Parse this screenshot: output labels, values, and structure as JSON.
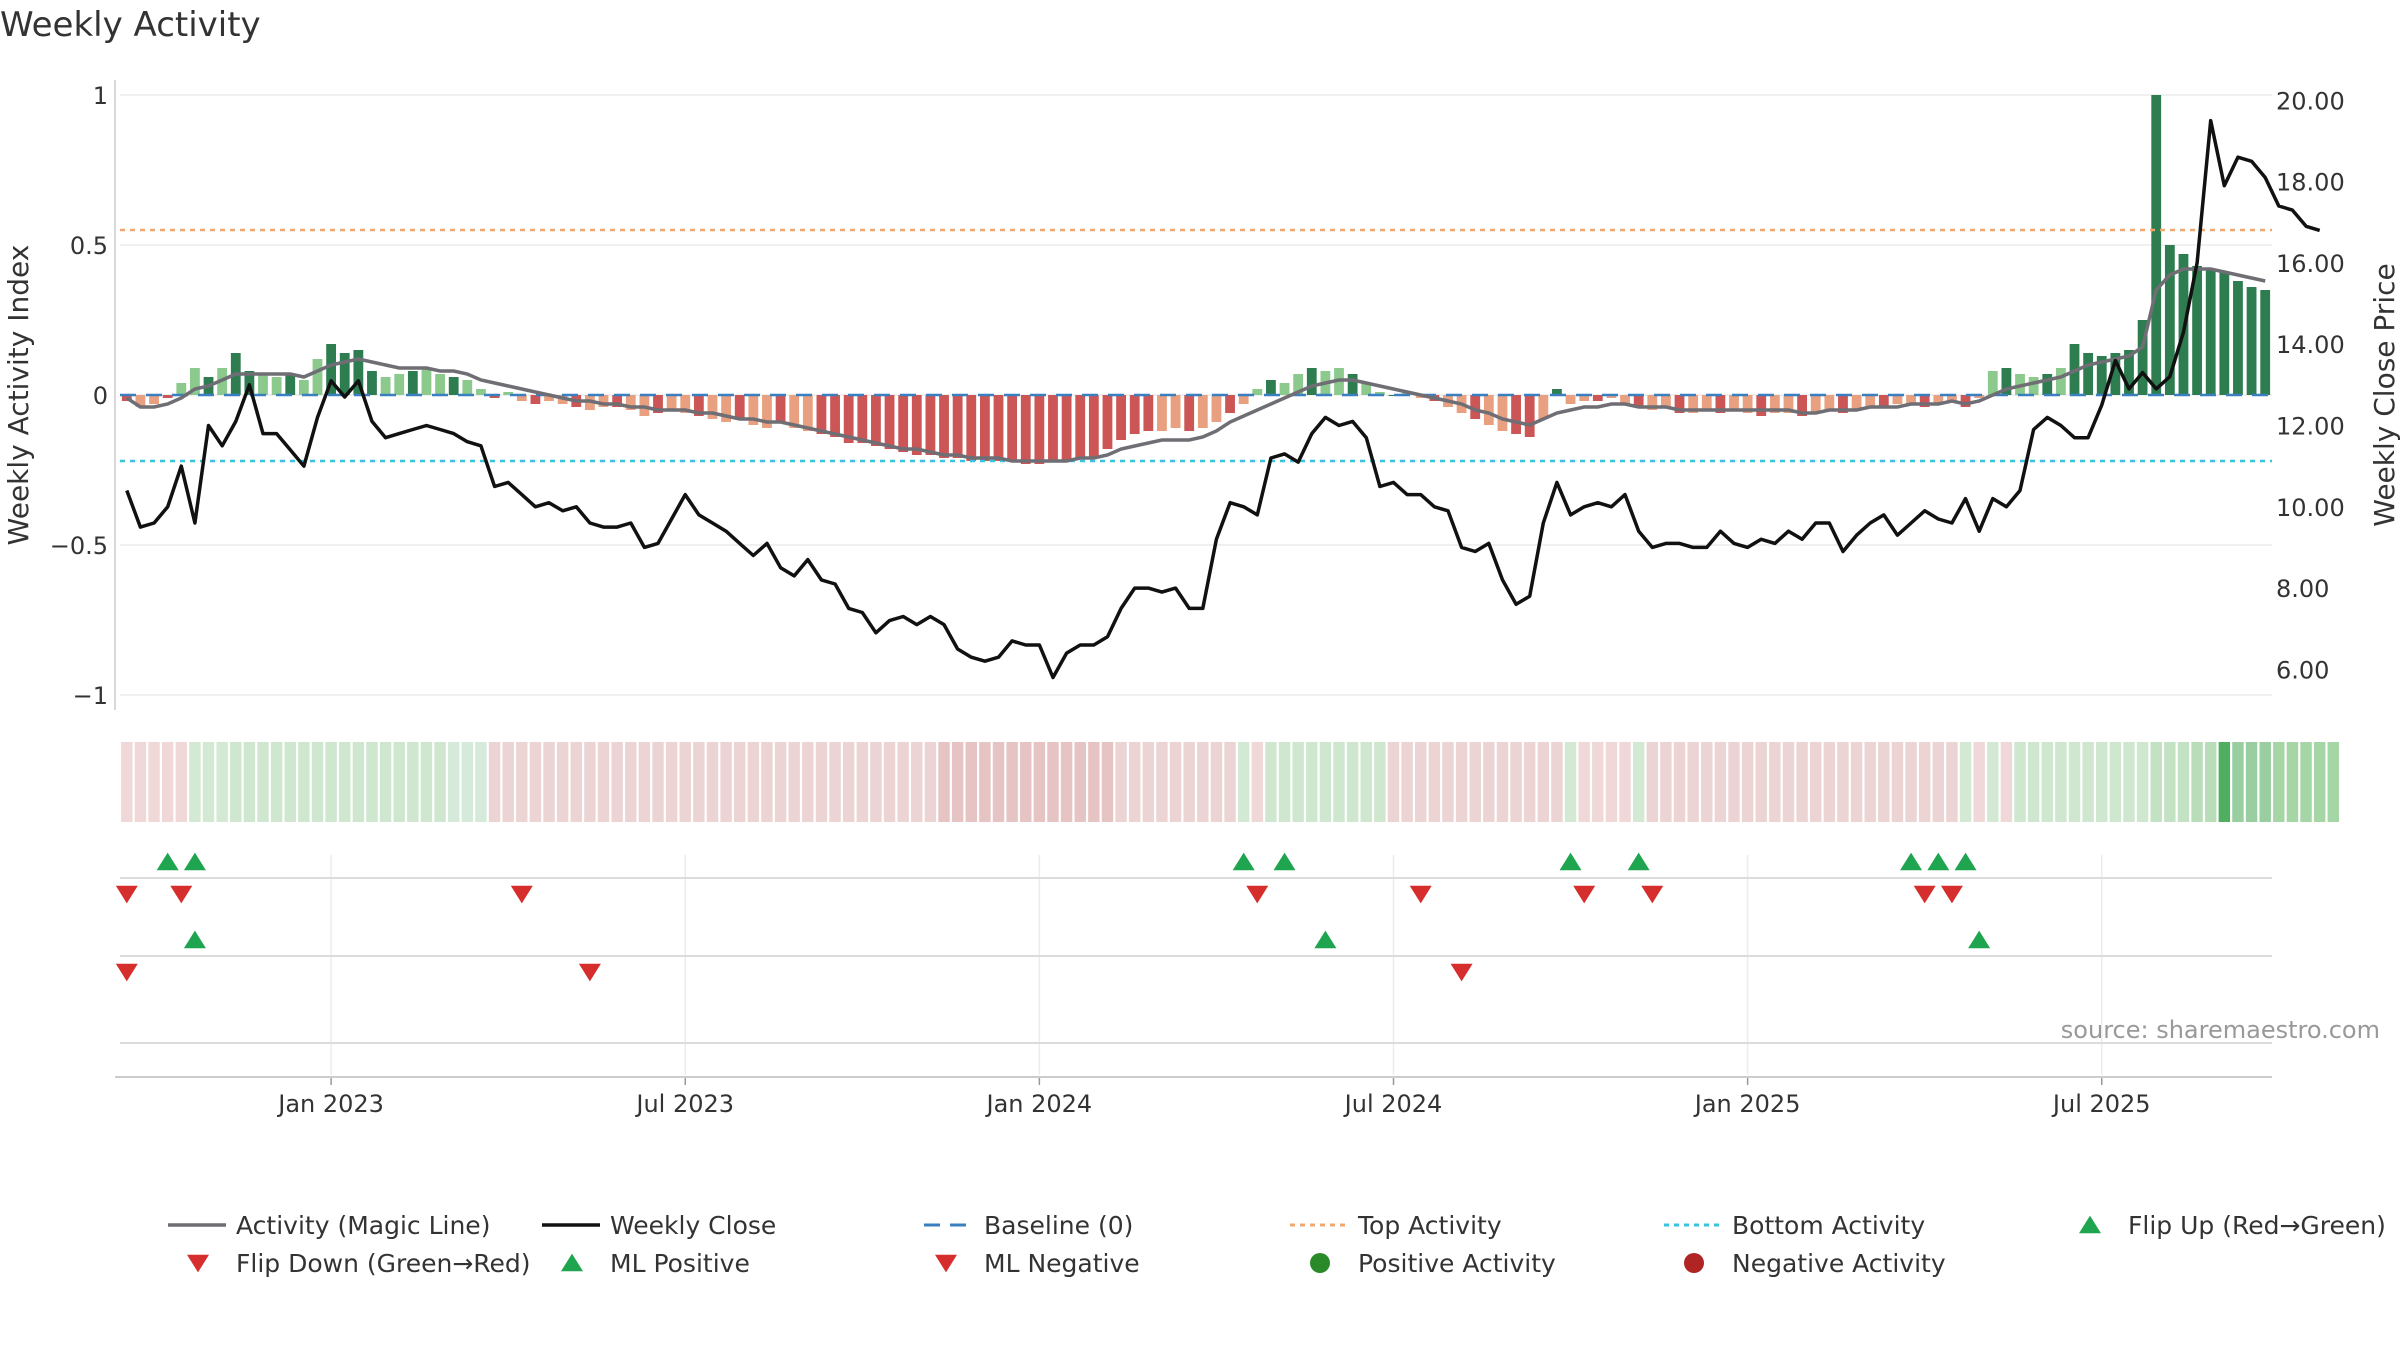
{
  "chart_data": {
    "type": "bar",
    "title": "Weekly Activity",
    "ylabel_left": "Weekly Activity Index",
    "ylabel_right": "Weekly Close Price",
    "ylim_left": [
      -1.05,
      1.05
    ],
    "ylim_right": [
      5.0,
      20.5
    ],
    "left_ticks": [
      {
        "value": 1,
        "label": "1"
      },
      {
        "value": 0.5,
        "label": "0.5"
      },
      {
        "value": 0,
        "label": "0"
      },
      {
        "value": -0.5,
        "label": "−0.5"
      },
      {
        "value": -1,
        "label": "−1"
      }
    ],
    "right_ticks": [
      {
        "value": 20,
        "label": "20.00"
      },
      {
        "value": 18,
        "label": "18.00"
      },
      {
        "value": 16,
        "label": "16.00"
      },
      {
        "value": 14,
        "label": "14.00"
      },
      {
        "value": 12,
        "label": "12.00"
      },
      {
        "value": 10,
        "label": "10.00"
      },
      {
        "value": 8,
        "label": "8.00"
      },
      {
        "value": 6,
        "label": "6.00"
      }
    ],
    "x_ticks": [
      {
        "index": 15,
        "label": "Jan 2023"
      },
      {
        "index": 41,
        "label": "Jul 2023"
      },
      {
        "index": 67,
        "label": "Jan 2024"
      },
      {
        "index": 93,
        "label": "Jul 2024"
      },
      {
        "index": 119,
        "label": "Jan 2025"
      },
      {
        "index": 145,
        "label": "Jul 2025"
      }
    ],
    "reference_lines": {
      "baseline": 0,
      "top_activity": 0.55,
      "bottom_activity": -0.22
    },
    "activity": [
      -0.02,
      -0.04,
      -0.03,
      -0.01,
      0.04,
      0.09,
      0.06,
      0.09,
      0.14,
      0.08,
      0.07,
      0.06,
      0.07,
      0.05,
      0.12,
      0.17,
      0.14,
      0.15,
      0.08,
      0.06,
      0.07,
      0.08,
      0.09,
      0.07,
      0.06,
      0.05,
      0.02,
      -0.01,
      0.01,
      -0.02,
      -0.03,
      -0.02,
      -0.03,
      -0.04,
      -0.05,
      -0.04,
      -0.04,
      -0.05,
      -0.07,
      -0.06,
      -0.05,
      -0.06,
      -0.07,
      -0.08,
      -0.09,
      -0.08,
      -0.1,
      -0.11,
      -0.09,
      -0.11,
      -0.12,
      -0.13,
      -0.14,
      -0.16,
      -0.16,
      -0.17,
      -0.18,
      -0.19,
      -0.2,
      -0.2,
      -0.21,
      -0.21,
      -0.22,
      -0.22,
      -0.22,
      -0.22,
      -0.23,
      -0.23,
      -0.22,
      -0.22,
      -0.21,
      -0.21,
      -0.18,
      -0.15,
      -0.13,
      -0.12,
      -0.12,
      -0.11,
      -0.12,
      -0.11,
      -0.09,
      -0.06,
      -0.03,
      0.02,
      0.05,
      0.04,
      0.07,
      0.09,
      0.08,
      0.09,
      0.07,
      0.04,
      0.01,
      0.0,
      0.01,
      -0.01,
      -0.02,
      -0.04,
      -0.06,
      -0.08,
      -0.1,
      -0.12,
      -0.13,
      -0.14,
      -0.08,
      0.02,
      -0.03,
      -0.02,
      -0.02,
      -0.01,
      -0.03,
      -0.04,
      -0.05,
      -0.04,
      -0.06,
      -0.06,
      -0.05,
      -0.06,
      -0.05,
      -0.06,
      -0.07,
      -0.06,
      -0.06,
      -0.07,
      -0.06,
      -0.05,
      -0.06,
      -0.05,
      -0.04,
      -0.04,
      -0.03,
      -0.03,
      -0.04,
      -0.03,
      -0.02,
      -0.04,
      -0.01,
      0.08,
      0.09,
      0.07,
      0.06,
      0.07,
      0.09,
      0.17,
      0.14,
      0.13,
      0.14,
      0.15,
      0.25,
      1.0,
      0.5,
      0.47,
      0.43,
      0.42,
      0.41,
      0.38,
      0.36,
      0.35
    ],
    "magic_line": [
      -0.01,
      -0.04,
      -0.04,
      -0.03,
      -0.01,
      0.02,
      0.03,
      0.05,
      0.07,
      0.07,
      0.07,
      0.07,
      0.07,
      0.06,
      0.08,
      0.1,
      0.11,
      0.12,
      0.11,
      0.1,
      0.09,
      0.09,
      0.09,
      0.08,
      0.08,
      0.07,
      0.05,
      0.04,
      0.03,
      0.02,
      0.01,
      0.0,
      -0.01,
      -0.02,
      -0.02,
      -0.03,
      -0.03,
      -0.04,
      -0.04,
      -0.05,
      -0.05,
      -0.05,
      -0.06,
      -0.06,
      -0.07,
      -0.08,
      -0.08,
      -0.09,
      -0.09,
      -0.1,
      -0.11,
      -0.12,
      -0.13,
      -0.14,
      -0.15,
      -0.16,
      -0.17,
      -0.18,
      -0.18,
      -0.19,
      -0.2,
      -0.2,
      -0.21,
      -0.21,
      -0.21,
      -0.22,
      -0.22,
      -0.22,
      -0.22,
      -0.22,
      -0.21,
      -0.21,
      -0.2,
      -0.18,
      -0.17,
      -0.16,
      -0.15,
      -0.15,
      -0.15,
      -0.14,
      -0.12,
      -0.09,
      -0.07,
      -0.05,
      -0.03,
      -0.01,
      0.01,
      0.03,
      0.04,
      0.05,
      0.05,
      0.04,
      0.03,
      0.02,
      0.01,
      0.0,
      -0.01,
      -0.02,
      -0.03,
      -0.05,
      -0.06,
      -0.08,
      -0.09,
      -0.1,
      -0.08,
      -0.06,
      -0.05,
      -0.04,
      -0.04,
      -0.03,
      -0.03,
      -0.04,
      -0.04,
      -0.04,
      -0.05,
      -0.05,
      -0.05,
      -0.05,
      -0.05,
      -0.05,
      -0.05,
      -0.05,
      -0.05,
      -0.06,
      -0.06,
      -0.05,
      -0.05,
      -0.05,
      -0.04,
      -0.04,
      -0.04,
      -0.03,
      -0.03,
      -0.03,
      -0.02,
      -0.03,
      -0.02,
      0.0,
      0.02,
      0.03,
      0.04,
      0.05,
      0.06,
      0.08,
      0.1,
      0.11,
      0.12,
      0.13,
      0.16,
      0.35,
      0.4,
      0.42,
      0.42,
      0.42,
      0.41,
      0.4,
      0.39,
      0.38
    ],
    "weekly_close": [
      10.4,
      9.5,
      9.6,
      10.0,
      11.0,
      9.6,
      12.0,
      11.5,
      12.1,
      13.0,
      11.8,
      11.8,
      11.4,
      11.0,
      12.2,
      13.1,
      12.7,
      13.1,
      12.1,
      11.7,
      11.8,
      11.9,
      12.0,
      11.9,
      11.8,
      11.6,
      11.5,
      10.5,
      10.6,
      10.3,
      10.0,
      10.1,
      9.9,
      10.0,
      9.6,
      9.5,
      9.5,
      9.6,
      9.0,
      9.1,
      9.7,
      10.3,
      9.8,
      9.6,
      9.4,
      9.1,
      8.8,
      9.1,
      8.5,
      8.3,
      8.7,
      8.2,
      8.1,
      7.5,
      7.4,
      6.9,
      7.2,
      7.3,
      7.1,
      7.3,
      7.1,
      6.5,
      6.3,
      6.2,
      6.3,
      6.7,
      6.6,
      6.6,
      5.8,
      6.4,
      6.6,
      6.6,
      6.8,
      7.5,
      8.0,
      8.0,
      7.9,
      8.0,
      7.5,
      7.5,
      9.2,
      10.1,
      10.0,
      9.8,
      11.2,
      11.3,
      11.1,
      11.8,
      12.2,
      12.0,
      12.1,
      11.7,
      10.5,
      10.6,
      10.3,
      10.3,
      10.0,
      9.9,
      9.0,
      8.9,
      9.1,
      8.2,
      7.6,
      7.8,
      9.6,
      10.6,
      9.8,
      10.0,
      10.1,
      10.0,
      10.3,
      9.4,
      9.0,
      9.1,
      9.1,
      9.0,
      9.0,
      9.4,
      9.1,
      9.0,
      9.2,
      9.1,
      9.4,
      9.2,
      9.6,
      9.6,
      8.9,
      9.3,
      9.6,
      9.8,
      9.3,
      9.6,
      9.9,
      9.7,
      9.6,
      10.2,
      9.4,
      10.2,
      10.0,
      10.4,
      11.9,
      12.2,
      12.0,
      11.7,
      11.7,
      12.5,
      13.6,
      12.9,
      13.3,
      12.9,
      13.2,
      14.3,
      16.0,
      19.5,
      17.9,
      18.6,
      18.5,
      18.1,
      17.4,
      17.3,
      16.9,
      16.8
    ],
    "strip_colors": [
      "#f0d8d8",
      "#f0d8d8",
      "#f0d8d8",
      "#f0d8d8",
      "#f0d8d8",
      "#d3e9d3",
      "#d3e9d3",
      "#d3e9d3",
      "#cfe7cf",
      "#cfe7cf",
      "#cfe7cf",
      "#cfe7cf",
      "#cfe7cf",
      "#cfe7cf",
      "#cfe7cf",
      "#cfe7cf",
      "#cfe7cf",
      "#cfe7cf",
      "#cfe7cf",
      "#cfe7cf",
      "#cfe7cf",
      "#cfe7cf",
      "#cfe7cf",
      "#cfe7cf",
      "#d5eadb",
      "#d5eadb",
      "#d5eadb",
      "#ecd4d4",
      "#ecd4d4",
      "#ecd4d4",
      "#ecd4d4",
      "#ecd4d4",
      "#ecd4d4",
      "#ecd4d4",
      "#ecd4d4",
      "#ecd4d4",
      "#ecd4d4",
      "#ecd4d4",
      "#ecd4d4",
      "#ecd4d4",
      "#ecd4d4",
      "#ecd4d4",
      "#ecd4d4",
      "#ecd4d4",
      "#ecd4d4",
      "#ecd4d4",
      "#ecd4d4",
      "#ecd4d4",
      "#ecd4d4",
      "#ecd4d4",
      "#ecd4d4",
      "#ecd4d4",
      "#ecd4d4",
      "#ecd4d4",
      "#ecd4d4",
      "#ecd4d4",
      "#ecd4d4",
      "#ecd4d4",
      "#ecd4d4",
      "#ecd4d4",
      "#e6c4c4",
      "#e6c4c4",
      "#e6c4c4",
      "#e6c4c4",
      "#e6c4c4",
      "#e6c4c4",
      "#e6c4c4",
      "#e6c4c4",
      "#e6c4c4",
      "#e6c4c4",
      "#e6c4c4",
      "#e6c4c4",
      "#e6c4c4",
      "#ecd4d4",
      "#ecd4d4",
      "#ecd4d4",
      "#ecd4d4",
      "#ecd4d4",
      "#ecd4d4",
      "#ecd4d4",
      "#ecd4d4",
      "#ecd4d4",
      "#d3e9d3",
      "#f0d8d8",
      "#cfe7cf",
      "#cfe7cf",
      "#cfe7cf",
      "#cfe7cf",
      "#cfe7cf",
      "#cfe7cf",
      "#cfe7cf",
      "#cfe7cf",
      "#cfe7cf",
      "#ecd4d4",
      "#ecd4d4",
      "#ecd4d4",
      "#ecd4d4",
      "#ecd4d4",
      "#ecd4d4",
      "#ecd4d4",
      "#ecd4d4",
      "#ecd4d4",
      "#ecd4d4",
      "#ecd4d4",
      "#ecd4d4",
      "#ecd4d4",
      "#d3e9d3",
      "#f0d8d8",
      "#f0d8d8",
      "#f0d8d8",
      "#f0d8d8",
      "#d3e9d3",
      "#ecd4d4",
      "#ecd4d4",
      "#ecd4d4",
      "#ecd4d4",
      "#ecd4d4",
      "#ecd4d4",
      "#ecd4d4",
      "#ecd4d4",
      "#ecd4d4",
      "#ecd4d4",
      "#ecd4d4",
      "#ecd4d4",
      "#ecd4d4",
      "#ecd4d4",
      "#ecd4d4",
      "#ecd4d4",
      "#ecd4d4",
      "#ecd4d4",
      "#ecd4d4",
      "#ecd4d4",
      "#ecd4d4",
      "#ecd4d4",
      "#ecd4d4",
      "#d3e9d3",
      "#f0d8d8",
      "#d3e9d3",
      "#f0d8d8",
      "#cfe7cf",
      "#cfe7cf",
      "#cfe7cf",
      "#cfe7cf",
      "#cfe7cf",
      "#cfe7cf",
      "#cfe7cf",
      "#cfe7cf",
      "#cfe7cf",
      "#cfe7cf",
      "#c3e2c3",
      "#c3e2c3",
      "#c3e2c3",
      "#b8ddb8",
      "#b8ddb8",
      "#4fae5f",
      "#98cea0",
      "#98cea0",
      "#98cea0",
      "#a6d5a6",
      "#a6d5a6",
      "#a6d5a6",
      "#a6d5a6",
      "#a6d5a6"
    ],
    "signal_rows": [
      {
        "name": "Flip Up (Red→Green)",
        "marker": "triangle-up",
        "color": "#1fa44f",
        "indices": [
          3,
          5,
          82,
          85,
          106,
          111,
          131,
          133,
          135
        ]
      },
      {
        "name": "Flip Down (Green→Red)",
        "marker": "triangle-down",
        "color": "#d62d2d",
        "indices": [
          0,
          4,
          29,
          83,
          95,
          107,
          112,
          132,
          134
        ]
      },
      {
        "name": "ML Positive",
        "marker": "triangle-up",
        "color": "#1fa44f",
        "indices": [
          5,
          88,
          136
        ]
      },
      {
        "name": "ML Negative",
        "marker": "triangle-down",
        "color": "#d62d2d",
        "indices": [
          0,
          34,
          98
        ]
      }
    ],
    "legend": [
      {
        "label": "Activity (Magic Line)",
        "symbol": "line",
        "color": "#6e6e74"
      },
      {
        "label": "Weekly Close",
        "symbol": "line",
        "color": "#111111"
      },
      {
        "label": "Baseline (0)",
        "symbol": "dash",
        "color": "#3a7fc0"
      },
      {
        "label": "Top Activity",
        "symbol": "dot",
        "color": "#f0a870"
      },
      {
        "label": "Bottom Activity",
        "symbol": "dot",
        "color": "#38c4dc"
      },
      {
        "label": "Flip Up (Red→Green)",
        "symbol": "triangle-up",
        "color": "#1fa44f"
      },
      {
        "label": "Flip Down (Green→Red)",
        "symbol": "triangle-down",
        "color": "#d62d2d"
      },
      {
        "label": "ML Positive",
        "symbol": "triangle-up",
        "color": "#1fa44f"
      },
      {
        "label": "ML Negative",
        "symbol": "triangle-down",
        "color": "#d62d2d"
      },
      {
        "label": "Positive Activity",
        "symbol": "circle",
        "color": "#2a8a2a"
      },
      {
        "label": "Negative Activity",
        "symbol": "circle",
        "color": "#b02424"
      }
    ],
    "colors": {
      "pos_dark": "#2e7d50",
      "pos_light": "#8cc98c",
      "neg_dark": "#cc5555",
      "neg_light": "#e8a080",
      "magic_line": "#6e6e74",
      "close_line": "#111111",
      "baseline": "#3a7fc0",
      "top": "#f0a870",
      "bottom": "#38c4dc"
    },
    "source": "source: sharemaestro.com"
  }
}
